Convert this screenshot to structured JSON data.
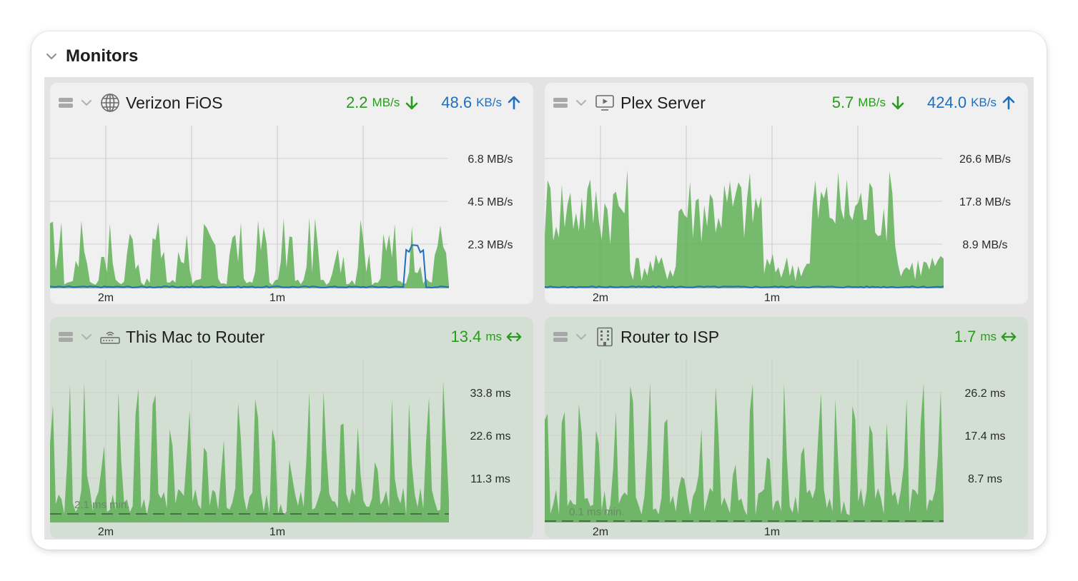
{
  "section": {
    "title": "Monitors",
    "chevron_icon": "chevron-down-icon"
  },
  "monitors": [
    {
      "title": "Verizon FiOS",
      "icon": "globe-icon",
      "kind": "network",
      "stats": [
        {
          "value": "2.2",
          "unit": "MB/s",
          "color": "#2a9a1e",
          "icon": "arrow-down-icon"
        },
        {
          "value": "48.6",
          "unit": "KB/s",
          "color": "#1f6fbf",
          "icon": "arrow-up-icon"
        }
      ],
      "y_labels": [
        "6.8 MB/s",
        "4.5 MB/s",
        "2.3 MB/s"
      ],
      "x_labels": [
        "2m",
        "1m"
      ]
    },
    {
      "title": "Plex Server",
      "icon": "display-play-icon",
      "kind": "network",
      "stats": [
        {
          "value": "5.7",
          "unit": "MB/s",
          "color": "#2a9a1e",
          "icon": "arrow-down-icon"
        },
        {
          "value": "424.0",
          "unit": "KB/s",
          "color": "#1f6fbf",
          "icon": "arrow-up-icon"
        }
      ],
      "y_labels": [
        "26.6 MB/s",
        "17.8 MB/s",
        "8.9 MB/s"
      ],
      "x_labels": [
        "2m",
        "1m"
      ]
    },
    {
      "title": "This Mac to Router",
      "icon": "router-icon",
      "kind": "ping",
      "stats": [
        {
          "value": "13.4",
          "unit": "ms",
          "color": "#2a9a1e",
          "icon": "arrow-left-right-icon"
        }
      ],
      "y_labels": [
        "33.8 ms",
        "22.6 ms",
        "11.3 ms"
      ],
      "x_labels": [
        "2m",
        "1m"
      ],
      "min_label": "2.1 ms min."
    },
    {
      "title": "Router to ISP",
      "icon": "building-icon",
      "kind": "ping",
      "stats": [
        {
          "value": "1.7",
          "unit": "ms",
          "color": "#2a9a1e",
          "icon": "arrow-left-right-icon"
        }
      ],
      "y_labels": [
        "26.2 ms",
        "17.4 ms",
        "8.7 ms"
      ],
      "x_labels": [
        "2m",
        "1m"
      ],
      "min_label": "0.1 ms min."
    }
  ]
}
